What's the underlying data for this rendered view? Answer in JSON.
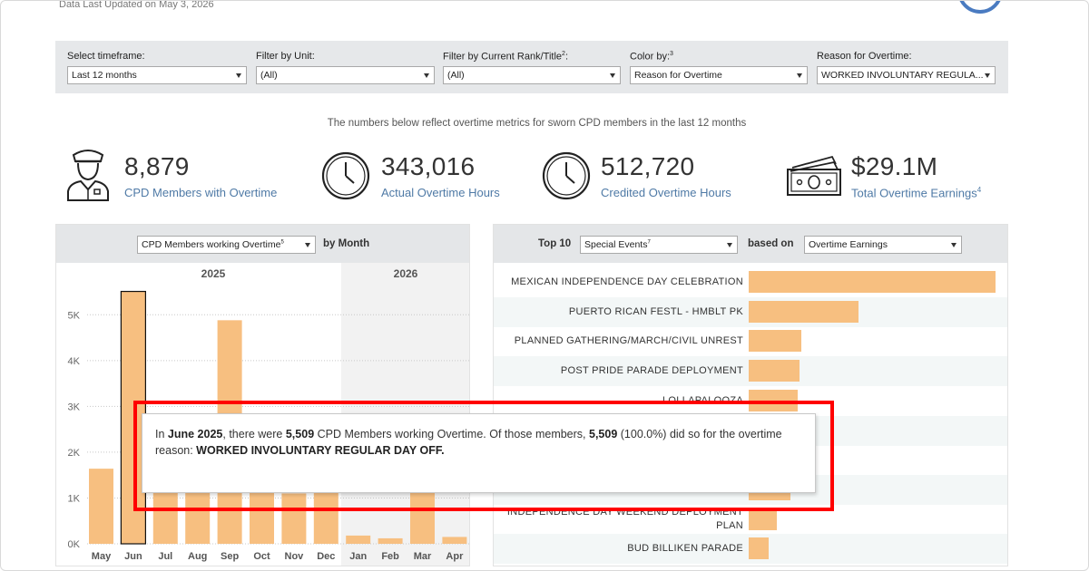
{
  "header": {
    "updated": "Data Last Updated on May 3, 2026"
  },
  "filters": [
    {
      "label": "Select timeframe:",
      "sup": "",
      "value": "Last 12 months"
    },
    {
      "label": "Filter by Unit:",
      "sup": "",
      "value": "(All)"
    },
    {
      "label": "Filter by Current Rank/Title",
      "sup": "2",
      "label_suffix": ":",
      "value": "(All)"
    },
    {
      "label": "Color by:",
      "sup": "3",
      "value": "Reason for Overtime"
    },
    {
      "label": "Reason for Overtime:",
      "sup": "",
      "value": "WORKED INVOLUNTARY REGULA..."
    }
  ],
  "subtitle": "The numbers below reflect overtime metrics for sworn CPD members in the last 12 months",
  "kpis": [
    {
      "icon": "officer-icon",
      "value": "8,879",
      "label": "CPD Members with Overtime",
      "sup": ""
    },
    {
      "icon": "clock-icon",
      "value": "343,016",
      "label": "Actual Overtime Hours",
      "sup": ""
    },
    {
      "icon": "clock-icon",
      "value": "512,720",
      "label": "Credited Overtime Hours",
      "sup": ""
    },
    {
      "icon": "money-icon",
      "value": "$29.1M",
      "label": "Total Overtime Earnings",
      "sup": "4"
    }
  ],
  "left_panel": {
    "select": "CPD Members working Overtime",
    "select_sup": "5",
    "suffix": "by Month",
    "year_labels": [
      "2025",
      "2026"
    ]
  },
  "right_panel": {
    "prefix": "Top 10",
    "select": "Special Events",
    "select_sup": "7",
    "middle": "based on",
    "select2": "Overtime Earnings"
  },
  "tooltip": {
    "p1": "In ",
    "month": "June 2025",
    "p2": ", there were ",
    "count": "5,509",
    "p3": " CPD Members working Overtime. Of those members, ",
    "count2": "5,509",
    "p4": " (100.0%) did so for the overtime reason: ",
    "reason": "WORKED INVOLUNTARY REGULAR DAY OFF."
  },
  "colors": {
    "bar": "#f7bf80",
    "accent": "#4f7aa6",
    "highlight_box": "#ff0000"
  },
  "chart_data": [
    {
      "type": "bar",
      "title": "CPD Members working Overtime by Month",
      "categories": [
        "May",
        "Jun",
        "Jul",
        "Aug",
        "Sep",
        "Oct",
        "Nov",
        "Dec",
        "Jan",
        "Feb",
        "Mar",
        "Apr"
      ],
      "years": [
        "2025",
        "2025",
        "2025",
        "2025",
        "2025",
        "2025",
        "2025",
        "2025",
        "2026",
        "2026",
        "2026",
        "2026"
      ],
      "values": [
        1640,
        5509,
        1250,
        1250,
        4880,
        1250,
        1100,
        1250,
        180,
        120,
        1250,
        150
      ],
      "highlighted": "Jun",
      "yticks": [
        0,
        1000,
        2000,
        3000,
        4000,
        5000
      ],
      "ytick_labels": [
        "0K",
        "1K",
        "2K",
        "3K",
        "4K",
        "5K"
      ],
      "ylim": [
        0,
        5500
      ],
      "grid": true
    },
    {
      "type": "bar",
      "orientation": "horizontal",
      "title": "Top 10 Special Events based on Overtime Earnings",
      "categories": [
        "MEXICAN INDEPENDENCE DAY CELEBRATION",
        "PUERTO RICAN FESTL - HMBLT PK",
        "PLANNED GATHERING/MARCH/CIVIL UNREST",
        "POST PRIDE PARADE DEPLOYMENT",
        "LOLLAPALOOZA",
        "",
        "",
        "",
        "INDEPENDENCE DAY WEEKEND DEPLOYMENT PLAN",
        "BUD BILLIKEN PARADE"
      ],
      "values": [
        100,
        44.5,
        21.5,
        20.5,
        20,
        18,
        17.5,
        17,
        11.5,
        8
      ],
      "unit": "relative"
    }
  ]
}
